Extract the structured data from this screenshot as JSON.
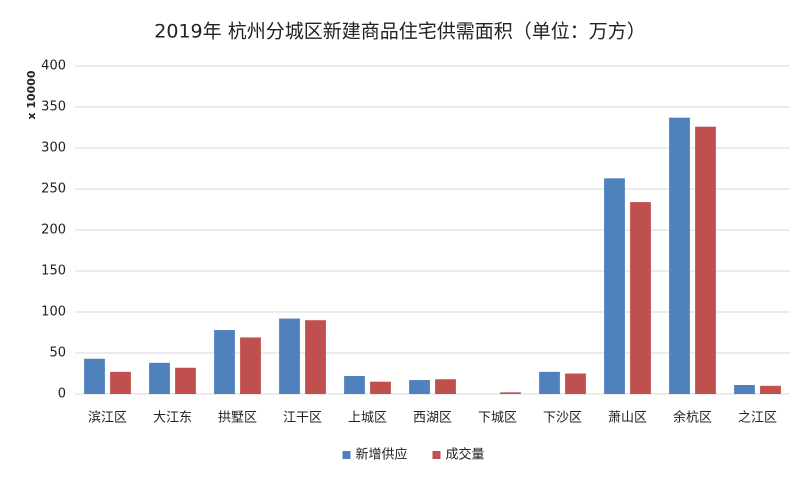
{
  "chart_data": {
    "type": "bar",
    "title": "2019年 杭州分城区新建商品住宅供需面积（单位：万方）",
    "y_label": "x 10000",
    "categories": [
      "滨江区",
      "大江东",
      "拱墅区",
      "江干区",
      "上城区",
      "西湖区",
      "下城区",
      "下沙区",
      "萧山区",
      "余杭区",
      "之江区"
    ],
    "series": [
      {
        "name": "新增供应",
        "color": "#4f81bd",
        "values": [
          43,
          38,
          78,
          92,
          22,
          17,
          0,
          27,
          263,
          337,
          11
        ]
      },
      {
        "name": "成交量",
        "color": "#c0504d",
        "values": [
          27,
          32,
          69,
          90,
          15,
          18,
          2,
          25,
          234,
          326,
          10
        ]
      }
    ],
    "ylim": [
      0,
      400
    ],
    "yticks": [
      0,
      50,
      100,
      150,
      200,
      250,
      300,
      350,
      400
    ],
    "grid": true,
    "legend": "bottom"
  }
}
